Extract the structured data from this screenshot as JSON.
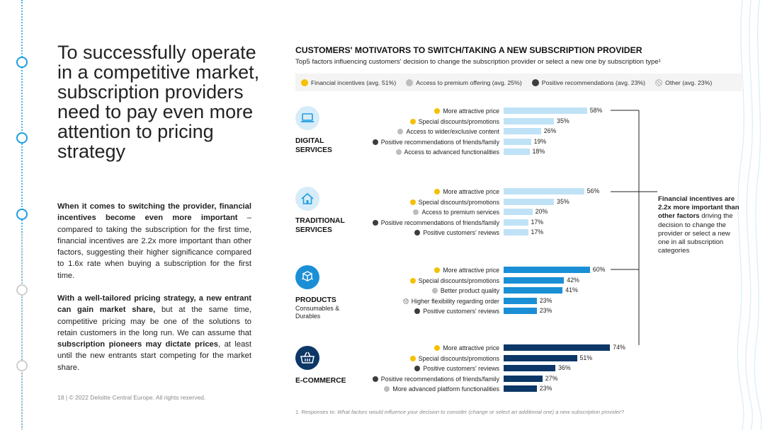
{
  "headline": "To successfully operate in a competitive market, subscription providers need to pay even more attention to pricing strategy",
  "body": {
    "p1": {
      "bold": "When it comes to switching the provider, financial incentives become even more important",
      "rest": " – compared to taking the subscription for the first time, financial incentives are 2.2x more important than other factors, suggesting their higher significance compared to 1.6x rate when buying a subscription for the first time."
    },
    "p2": {
      "bold1": "With a well-tailored pricing strategy, a new entrant can gain market share,",
      "rest1": " but at the same time, competitive pricing may be one of the solutions to retain customers in the long run. We can assume that ",
      "bold2": "subscription pioneers may dictate prices",
      "rest2": ", at least until the new entrants start competing for the market share."
    }
  },
  "footer": "18  |  © 2022 Deloitte Central Europe. All rights reserved.",
  "colors": {
    "financial": "#f5c000",
    "premium": "#bdbdbd",
    "positive": "#3d3d3d",
    "digital_bar": "#bfe2f6",
    "traditional_bar": "#bfe2f6",
    "products_bar": "#1a8fd6",
    "ecommerce_bar": "#0c3767",
    "digital_icon": "#d6ecf8",
    "traditional_icon": "#d6ecf8",
    "products_icon": "#1a8fd6",
    "ecommerce_icon": "#0c3767"
  },
  "annotation": {
    "bold": "Financial incentives are 2.2x more important than other factors",
    "rest": " driving the decision to change the provider or select a new one in all subscription categories"
  },
  "footnote": {
    "prefix": "1.   Responses to: ",
    "question": "What factors would influence your decision to consider (change or select an additional one) a new subscription provider?"
  },
  "chart_data": {
    "type": "bar",
    "title": "CUSTOMERS' MOTIVATORS TO SWITCH/TAKING A NEW SUBSCRIPTION PROVIDER",
    "subtitle": "Top5 factors influencing customers' decision to change the subscription provider or select a new one by subscription type¹",
    "legend": [
      {
        "label": "Financial incentives (avg. 51%)",
        "type": "financial"
      },
      {
        "label": "Access to premium offering (avg. 25%)",
        "type": "premium"
      },
      {
        "label": "Positive recommendations (avg. 23%)",
        "type": "positive"
      },
      {
        "label": "Other (avg. 23%)",
        "type": "other"
      }
    ],
    "unit": "%",
    "xlim": [
      0,
      100
    ],
    "groups": [
      {
        "key": "digital",
        "name": "DIGITAL SERVICES",
        "name_lines": [
          "DIGITAL",
          "SERVICES"
        ],
        "subname_lines": [],
        "icon": "laptop-icon",
        "factors": [
          {
            "label": "More attractive price",
            "value": 58,
            "type": "financial"
          },
          {
            "label": "Special discounts/promotions",
            "value": 35,
            "type": "financial"
          },
          {
            "label": "Access to wider/exclusive content",
            "value": 26,
            "type": "premium"
          },
          {
            "label": "Positive recommendations of friends/family",
            "value": 19,
            "type": "positive"
          },
          {
            "label": "Access to advanced functionalities",
            "value": 18,
            "type": "premium"
          }
        ]
      },
      {
        "key": "traditional",
        "name": "TRADITIONAL SERVICES",
        "name_lines": [
          "TRADITIONAL",
          "SERVICES"
        ],
        "subname_lines": [],
        "icon": "house-icon",
        "factors": [
          {
            "label": "More attractive price",
            "value": 56,
            "type": "financial"
          },
          {
            "label": "Special discounts/promotions",
            "value": 35,
            "type": "financial"
          },
          {
            "label": "Access to premium services",
            "value": 20,
            "type": "premium"
          },
          {
            "label": "Positive recommendations of friends/family",
            "value": 17,
            "type": "positive"
          },
          {
            "label": "Positive customers' reviews",
            "value": 17,
            "type": "positive"
          }
        ]
      },
      {
        "key": "products",
        "name": "PRODUCTS",
        "name_lines": [
          "PRODUCTS"
        ],
        "subname_lines": [
          "Consumables &",
          "Durables"
        ],
        "icon": "boxes-icon",
        "factors": [
          {
            "label": "More attractive price",
            "value": 60,
            "type": "financial"
          },
          {
            "label": "Special discounts/promotions",
            "value": 42,
            "type": "financial"
          },
          {
            "label": "Better product quality",
            "value": 41,
            "type": "premium"
          },
          {
            "label": "Higher flexibility regarding order",
            "value": 23,
            "type": "other"
          },
          {
            "label": "Positive customers' reviews",
            "value": 23,
            "type": "positive"
          }
        ]
      },
      {
        "key": "ecommerce",
        "name": "E-COMMERCE",
        "name_lines": [
          "E-COMMERCE"
        ],
        "subname_lines": [],
        "icon": "basket-icon",
        "factors": [
          {
            "label": "More attractive price",
            "value": 74,
            "type": "financial"
          },
          {
            "label": "Special discounts/promotions",
            "value": 51,
            "type": "financial"
          },
          {
            "label": "Positive customers' reviews",
            "value": 36,
            "type": "positive"
          },
          {
            "label": "Positive recommendations of friends/family",
            "value": 27,
            "type": "positive"
          },
          {
            "label": "More advanced platform functionalities",
            "value": 23,
            "type": "premium"
          }
        ]
      }
    ]
  }
}
